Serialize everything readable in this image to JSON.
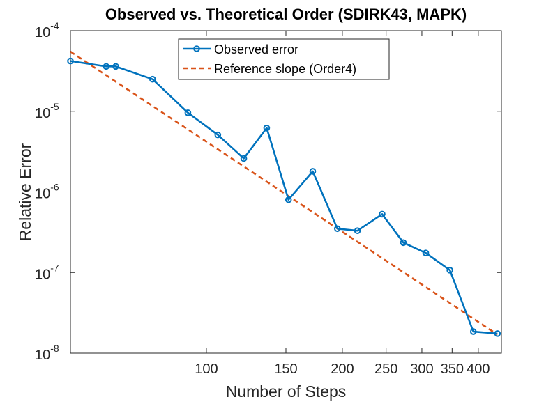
{
  "chart_data": {
    "type": "line",
    "title": "Observed vs. Theoretical Order (SDIRK43, MAPK)",
    "xlabel": "Number of Steps",
    "ylabel": "Relative Error",
    "xscale": "log",
    "yscale": "log",
    "xlim": [
      50,
      450
    ],
    "ylim": [
      1e-08,
      0.0001
    ],
    "x_ticks": [
      {
        "value": 100,
        "label": "100"
      },
      {
        "value": 150,
        "label": "150"
      },
      {
        "value": 200,
        "label": "200"
      },
      {
        "value": 250,
        "label": "250"
      },
      {
        "value": 300,
        "label": "300"
      },
      {
        "value": 350,
        "label": "350"
      },
      {
        "value": 400,
        "label": "400"
      }
    ],
    "y_ticks": [
      {
        "value": 1e-08,
        "base": "10",
        "exp": "-8"
      },
      {
        "value": 1e-07,
        "base": "10",
        "exp": "-7"
      },
      {
        "value": 1e-06,
        "base": "10",
        "exp": "-6"
      },
      {
        "value": 1e-05,
        "base": "10",
        "exp": "-5"
      },
      {
        "value": 0.0001,
        "base": "10",
        "exp": "-4"
      }
    ],
    "grid": false,
    "legend_position": "top-center",
    "series": [
      {
        "name": "Observed error",
        "color": "#0072BD",
        "style": "solid-circle-markers",
        "x": [
          50,
          60,
          63,
          76,
          91,
          106,
          121,
          136,
          152,
          172,
          195,
          216,
          245,
          273,
          306,
          346,
          390,
          441
        ],
        "y": [
          4.2e-05,
          3.6e-05,
          3.6e-05,
          2.5e-05,
          9.6e-06,
          5.1e-06,
          2.6e-06,
          6.2e-06,
          8e-07,
          1.8e-06,
          3.5e-07,
          3.3e-07,
          5.3e-07,
          2.35e-07,
          1.75e-07,
          1.07e-07,
          1.85e-08,
          1.75e-08
        ]
      },
      {
        "name": "Reference slope (Order4)",
        "color": "#D95319",
        "style": "dashed",
        "x": [
          50,
          441
        ],
        "y": [
          5.5e-05,
          1.7e-08
        ]
      }
    ]
  }
}
